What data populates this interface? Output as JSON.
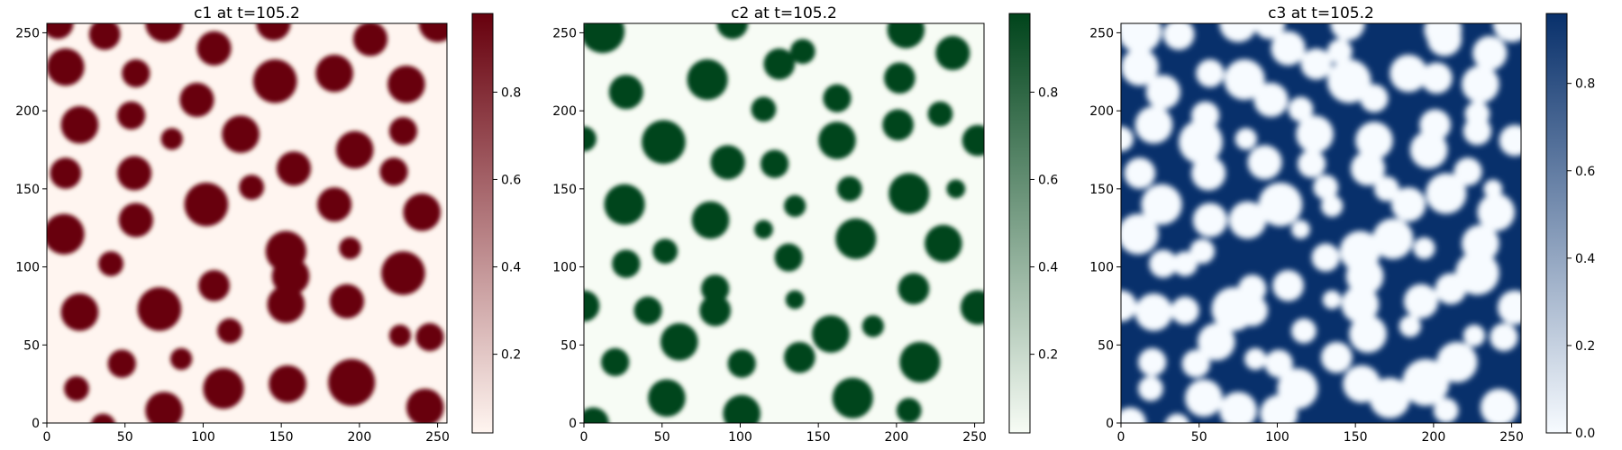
{
  "chart_data": [
    {
      "type": "heatmap",
      "title": "c1 at t=105.2",
      "colormap": "Reds",
      "low_color": "#fff5f0",
      "high_color": "#67000d",
      "xlim": [
        0,
        256
      ],
      "ylim": [
        0,
        256
      ],
      "xticks": [
        0,
        50,
        100,
        150,
        200,
        250
      ],
      "yticks": [
        0,
        50,
        100,
        150,
        200,
        250
      ],
      "colorbar": {
        "range": [
          0.02,
          0.98
        ],
        "ticks": [
          "0.2",
          "0.4",
          "0.6",
          "0.8"
        ],
        "tick_values": [
          0.2,
          0.4,
          0.6,
          0.8
        ]
      },
      "features": "droplets",
      "blobs": [
        [
          7,
          256,
          10
        ],
        [
          37,
          249,
          10
        ],
        [
          75,
          256,
          12
        ],
        [
          107,
          240,
          11
        ],
        [
          145,
          256,
          11
        ],
        [
          207,
          246,
          11
        ],
        [
          250,
          256,
          12
        ],
        [
          12,
          228,
          12
        ],
        [
          57,
          224,
          9
        ],
        [
          146,
          219,
          14
        ],
        [
          184,
          224,
          12
        ],
        [
          230,
          217,
          12
        ],
        [
          21,
          191,
          12
        ],
        [
          54,
          197,
          9
        ],
        [
          96,
          207,
          11
        ],
        [
          80,
          182,
          7
        ],
        [
          124,
          185,
          12
        ],
        [
          228,
          187,
          9
        ],
        [
          12,
          160,
          10
        ],
        [
          56,
          160,
          11
        ],
        [
          158,
          163,
          11
        ],
        [
          197,
          175,
          12
        ],
        [
          222,
          161,
          9
        ],
        [
          102,
          140,
          14
        ],
        [
          131,
          151,
          8
        ],
        [
          184,
          140,
          11
        ],
        [
          11,
          121,
          13
        ],
        [
          57,
          130,
          11
        ],
        [
          240,
          135,
          12
        ],
        [
          153,
          110,
          13
        ],
        [
          194,
          112,
          7
        ],
        [
          41,
          102,
          8
        ],
        [
          156,
          94,
          12
        ],
        [
          228,
          96,
          14
        ],
        [
          107,
          88,
          10
        ],
        [
          21,
          71,
          12
        ],
        [
          72,
          73,
          14
        ],
        [
          153,
          76,
          12
        ],
        [
          192,
          78,
          11
        ],
        [
          117,
          59,
          8
        ],
        [
          226,
          56,
          7
        ],
        [
          245,
          55,
          9
        ],
        [
          48,
          38,
          9
        ],
        [
          86,
          41,
          7
        ],
        [
          19,
          22,
          8
        ],
        [
          113,
          22,
          13
        ],
        [
          154,
          25,
          12
        ],
        [
          195,
          26,
          15
        ],
        [
          242,
          10,
          12
        ],
        [
          75,
          8,
          12
        ],
        [
          36,
          -2,
          8
        ]
      ]
    },
    {
      "type": "heatmap",
      "title": "c2 at t=105.2",
      "colormap": "Greens",
      "low_color": "#f7fcf5",
      "high_color": "#00441b",
      "xlim": [
        0,
        256
      ],
      "ylim": [
        0,
        256
      ],
      "xticks": [
        0,
        50,
        100,
        150,
        200,
        250
      ],
      "yticks": [
        0,
        50,
        100,
        150,
        200,
        250
      ],
      "colorbar": {
        "range": [
          0.02,
          0.98
        ],
        "ticks": [
          "0.2",
          "0.4",
          "0.6",
          "0.8"
        ],
        "tick_values": [
          0.2,
          0.4,
          0.6,
          0.8
        ]
      },
      "features": "droplets",
      "blobs": [
        [
          12,
          251,
          14
        ],
        [
          95,
          256,
          10
        ],
        [
          140,
          238,
          8
        ],
        [
          206,
          252,
          12
        ],
        [
          236,
          237,
          11
        ],
        [
          79,
          220,
          13
        ],
        [
          125,
          230,
          10
        ],
        [
          202,
          221,
          10
        ],
        [
          27,
          212,
          11
        ],
        [
          162,
          208,
          9
        ],
        [
          115,
          201,
          8
        ],
        [
          228,
          198,
          8
        ],
        [
          201,
          191,
          10
        ],
        [
          0,
          182,
          8
        ],
        [
          51,
          180,
          14
        ],
        [
          252,
          181,
          10
        ],
        [
          92,
          167,
          11
        ],
        [
          122,
          166,
          9
        ],
        [
          162,
          181,
          12
        ],
        [
          26,
          140,
          13
        ],
        [
          208,
          147,
          13
        ],
        [
          170,
          150,
          8
        ],
        [
          135,
          139,
          7
        ],
        [
          238,
          150,
          6
        ],
        [
          81,
          130,
          12
        ],
        [
          115,
          124,
          6
        ],
        [
          174,
          118,
          13
        ],
        [
          230,
          115,
          12
        ],
        [
          52,
          110,
          8
        ],
        [
          27,
          102,
          9
        ],
        [
          131,
          106,
          9
        ],
        [
          84,
          86,
          9
        ],
        [
          84,
          72,
          10
        ],
        [
          211,
          86,
          10
        ],
        [
          135,
          79,
          6
        ],
        [
          41,
          72,
          9
        ],
        [
          0,
          75,
          10
        ],
        [
          252,
          74,
          11
        ],
        [
          158,
          57,
          12
        ],
        [
          185,
          62,
          7
        ],
        [
          61,
          52,
          12
        ],
        [
          215,
          39,
          13
        ],
        [
          20,
          39,
          9
        ],
        [
          101,
          38,
          9
        ],
        [
          138,
          42,
          10
        ],
        [
          53,
          16,
          12
        ],
        [
          101,
          6,
          12
        ],
        [
          172,
          16,
          13
        ],
        [
          208,
          8,
          8
        ],
        [
          6,
          0,
          10
        ]
      ]
    },
    {
      "type": "heatmap",
      "title": "c3 at t=105.2",
      "colormap": "Blues",
      "low_color": "#f7fbff",
      "high_color": "#08306b",
      "xlim": [
        0,
        256
      ],
      "ylim": [
        0,
        256
      ],
      "xticks": [
        0,
        50,
        100,
        150,
        200,
        250
      ],
      "yticks": [
        0,
        50,
        100,
        150,
        200,
        250
      ],
      "colorbar": {
        "range": [
          0.0,
          0.96
        ],
        "ticks": [
          "0.0",
          "0.2",
          "0.4",
          "0.6",
          "0.8"
        ],
        "tick_values": [
          0.0,
          0.2,
          0.4,
          0.6,
          0.8
        ]
      },
      "features": "holes",
      "blobs": [
        [
          7,
          256,
          10
        ],
        [
          37,
          249,
          10
        ],
        [
          75,
          256,
          12
        ],
        [
          107,
          240,
          11
        ],
        [
          145,
          256,
          11
        ],
        [
          207,
          246,
          11
        ],
        [
          250,
          256,
          12
        ],
        [
          12,
          228,
          12
        ],
        [
          57,
          224,
          9
        ],
        [
          146,
          219,
          14
        ],
        [
          184,
          224,
          12
        ],
        [
          230,
          217,
          12
        ],
        [
          21,
          191,
          12
        ],
        [
          54,
          197,
          9
        ],
        [
          96,
          207,
          11
        ],
        [
          80,
          182,
          7
        ],
        [
          124,
          185,
          12
        ],
        [
          228,
          187,
          9
        ],
        [
          12,
          160,
          10
        ],
        [
          56,
          160,
          11
        ],
        [
          158,
          163,
          11
        ],
        [
          197,
          175,
          12
        ],
        [
          222,
          161,
          9
        ],
        [
          102,
          140,
          14
        ],
        [
          131,
          151,
          8
        ],
        [
          184,
          140,
          11
        ],
        [
          11,
          121,
          13
        ],
        [
          57,
          130,
          11
        ],
        [
          240,
          135,
          12
        ],
        [
          153,
          110,
          13
        ],
        [
          194,
          112,
          7
        ],
        [
          41,
          102,
          8
        ],
        [
          156,
          94,
          12
        ],
        [
          228,
          96,
          14
        ],
        [
          107,
          88,
          10
        ],
        [
          21,
          71,
          12
        ],
        [
          72,
          73,
          14
        ],
        [
          153,
          76,
          12
        ],
        [
          192,
          78,
          11
        ],
        [
          117,
          59,
          8
        ],
        [
          226,
          56,
          7
        ],
        [
          245,
          55,
          9
        ],
        [
          48,
          38,
          9
        ],
        [
          86,
          41,
          7
        ],
        [
          19,
          22,
          8
        ],
        [
          113,
          22,
          13
        ],
        [
          154,
          25,
          12
        ],
        [
          195,
          26,
          15
        ],
        [
          242,
          10,
          12
        ],
        [
          75,
          8,
          12
        ],
        [
          36,
          -2,
          8
        ],
        [
          12,
          251,
          14
        ],
        [
          95,
          256,
          10
        ],
        [
          140,
          238,
          8
        ],
        [
          206,
          252,
          12
        ],
        [
          236,
          237,
          11
        ],
        [
          79,
          220,
          13
        ],
        [
          125,
          230,
          10
        ],
        [
          202,
          221,
          10
        ],
        [
          27,
          212,
          11
        ],
        [
          162,
          208,
          9
        ],
        [
          115,
          201,
          8
        ],
        [
          228,
          198,
          8
        ],
        [
          201,
          191,
          10
        ],
        [
          0,
          182,
          8
        ],
        [
          51,
          180,
          14
        ],
        [
          252,
          181,
          10
        ],
        [
          92,
          167,
          11
        ],
        [
          122,
          166,
          9
        ],
        [
          162,
          181,
          12
        ],
        [
          26,
          140,
          13
        ],
        [
          208,
          147,
          13
        ],
        [
          170,
          150,
          8
        ],
        [
          135,
          139,
          7
        ],
        [
          238,
          150,
          6
        ],
        [
          81,
          130,
          12
        ],
        [
          115,
          124,
          6
        ],
        [
          174,
          118,
          13
        ],
        [
          230,
          115,
          12
        ],
        [
          52,
          110,
          8
        ],
        [
          27,
          102,
          9
        ],
        [
          131,
          106,
          9
        ],
        [
          84,
          86,
          9
        ],
        [
          84,
          72,
          10
        ],
        [
          211,
          86,
          10
        ],
        [
          135,
          79,
          6
        ],
        [
          41,
          72,
          9
        ],
        [
          0,
          75,
          10
        ],
        [
          252,
          74,
          11
        ],
        [
          158,
          57,
          12
        ],
        [
          185,
          62,
          7
        ],
        [
          61,
          52,
          12
        ],
        [
          215,
          39,
          13
        ],
        [
          20,
          39,
          9
        ],
        [
          101,
          38,
          9
        ],
        [
          138,
          42,
          10
        ],
        [
          53,
          16,
          12
        ],
        [
          101,
          6,
          12
        ],
        [
          172,
          16,
          13
        ],
        [
          208,
          8,
          8
        ],
        [
          6,
          0,
          10
        ]
      ]
    }
  ]
}
